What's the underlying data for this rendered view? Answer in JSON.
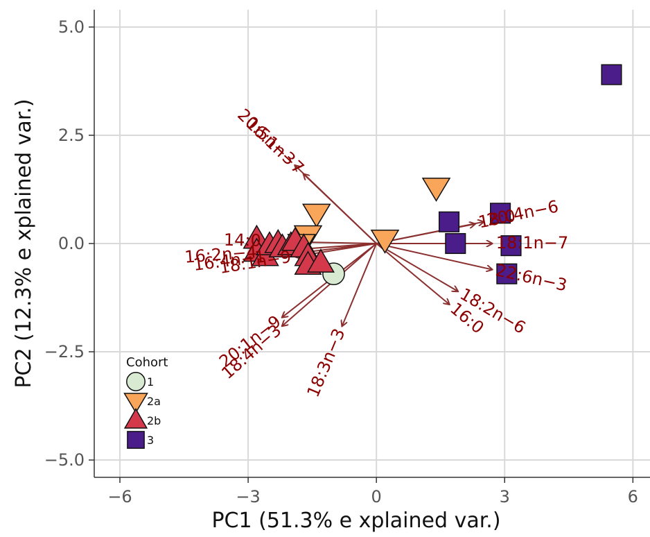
{
  "chart_data": {
    "type": "scatter",
    "title": "",
    "xlabel": "PC1 (51.3% e xplained var.)",
    "ylabel": "PC2 (12.3% e xplained var.)",
    "xlim": [
      -6.6,
      6.4
    ],
    "ylim": [
      -5.4,
      5.4
    ],
    "x_ticks": [
      -6,
      -3,
      0,
      3,
      6
    ],
    "x_tick_labels": [
      "−6",
      "−3",
      "0",
      "3",
      "6"
    ],
    "y_ticks": [
      -5,
      -2.5,
      0,
      2.5,
      5
    ],
    "y_tick_labels": [
      "−5.0",
      "−2.5",
      "0.0",
      "2.5",
      "5.0"
    ],
    "grid": true,
    "colors": {
      "grid": "#d9d9d9",
      "arrow": "#8b2f2f",
      "loading_text": "#8b0000",
      "cohort_1": "#d9ead3",
      "cohort_2a": "#f9a55a",
      "cohort_2b": "#d3394a",
      "cohort_3": "#4b1d8a"
    },
    "legend": {
      "title": "Cohort",
      "position": "bottom-left",
      "entries": [
        {
          "label": "1",
          "shape": "circle",
          "color": "#d9ead3"
        },
        {
          "label": "2a",
          "shape": "triangle-down",
          "color": "#f9a55a"
        },
        {
          "label": "2b",
          "shape": "triangle-up",
          "color": "#d3394a"
        },
        {
          "label": "3",
          "shape": "square",
          "color": "#4b1d8a"
        }
      ]
    },
    "series": [
      {
        "name": "1",
        "shape": "circle",
        "color": "#d9ead3",
        "points": [
          {
            "x": -1.0,
            "y": -0.7
          }
        ]
      },
      {
        "name": "2a",
        "shape": "triangle-down",
        "color": "#f9a55a",
        "points": [
          {
            "x": 0.2,
            "y": 0.1
          },
          {
            "x": 1.4,
            "y": 1.3
          },
          {
            "x": -1.4,
            "y": 0.7
          },
          {
            "x": -1.6,
            "y": 0.2
          },
          {
            "x": -1.75,
            "y": 0.0
          }
        ]
      },
      {
        "name": "2b",
        "shape": "triangle-up",
        "color": "#d3394a",
        "points": [
          {
            "x": -2.8,
            "y": 0.1
          },
          {
            "x": -2.8,
            "y": -0.2
          },
          {
            "x": -2.6,
            "y": -0.3
          },
          {
            "x": -2.5,
            "y": -0.05
          },
          {
            "x": -2.3,
            "y": 0.0
          },
          {
            "x": -2.2,
            "y": -0.1
          },
          {
            "x": -2.0,
            "y": -0.05
          },
          {
            "x": -1.9,
            "y": 0.05
          },
          {
            "x": -1.7,
            "y": -0.1
          },
          {
            "x": -1.6,
            "y": -0.3
          },
          {
            "x": -1.6,
            "y": -0.5
          },
          {
            "x": -1.3,
            "y": -0.45
          }
        ]
      },
      {
        "name": "3",
        "shape": "square",
        "color": "#4b1d8a",
        "points": [
          {
            "x": 5.5,
            "y": 3.9
          },
          {
            "x": 1.7,
            "y": 0.5
          },
          {
            "x": 2.9,
            "y": 0.7
          },
          {
            "x": 1.85,
            "y": 0.0
          },
          {
            "x": 3.15,
            "y": -0.05
          },
          {
            "x": 3.05,
            "y": -0.7
          }
        ]
      }
    ],
    "loadings": [
      {
        "label": "20:5n−3",
        "x": -1.9,
        "y": 1.8
      },
      {
        "label": "16:1n−7",
        "x": -1.7,
        "y": 1.6
      },
      {
        "label": "14:0",
        "x": -2.6,
        "y": 0.05
      },
      {
        "label": "16:2n−4",
        "x": -2.7,
        "y": -0.2
      },
      {
        "label": "16:4n−1",
        "x": -2.5,
        "y": -0.3
      },
      {
        "label": "18:1n−9",
        "x": -1.9,
        "y": -0.3
      },
      {
        "label": "20:1n−9",
        "x": -2.2,
        "y": -1.7
      },
      {
        "label": "18:4n−3",
        "x": -2.2,
        "y": -1.9
      },
      {
        "label": "18:3n−3",
        "x": -0.8,
        "y": -1.9
      },
      {
        "label": "18:0",
        "x": 2.3,
        "y": 0.45
      },
      {
        "label": "20:4n−6",
        "x": 2.5,
        "y": 0.5
      },
      {
        "label": "18:1n−7",
        "x": 2.7,
        "y": 0.0
      },
      {
        "label": "22:6n−3",
        "x": 2.7,
        "y": -0.6
      },
      {
        "label": "18:2n−6",
        "x": 1.9,
        "y": -1.1
      },
      {
        "label": "16:0",
        "x": 1.7,
        "y": -1.4
      }
    ]
  }
}
